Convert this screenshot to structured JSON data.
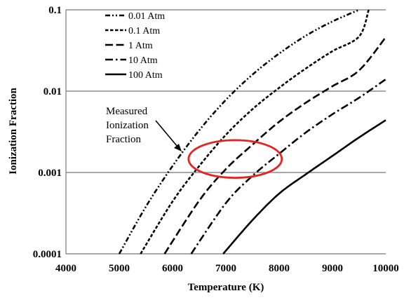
{
  "chart_data": {
    "type": "line",
    "xlabel": "Temperature (K)",
    "ylabel": "Ionization Fraction",
    "xlim": [
      4000,
      10000
    ],
    "ylim": [
      0.0001,
      0.1
    ],
    "yscale": "log",
    "xticks": [
      "4000",
      "5000",
      "6000",
      "7000",
      "8000",
      "9000",
      "10000"
    ],
    "yticks": [
      "0.0001",
      "0.001",
      "0.01",
      "0.1"
    ],
    "grid": "horizontal",
    "legend_position": "top-left",
    "series": [
      {
        "name": "0.01 Atm",
        "dash": "dash-dot-dot",
        "x": [
          5000,
          5500,
          6000,
          6500,
          7000,
          7500,
          8000,
          8500,
          9000,
          9500
        ],
        "y": [
          0.0001,
          0.00038,
          0.0012,
          0.0033,
          0.0078,
          0.016,
          0.029,
          0.048,
          0.072,
          0.1
        ]
      },
      {
        "name": "0.1 Atm",
        "dash": "short-dash",
        "x": [
          5400,
          6000,
          6500,
          7000,
          7500,
          8000,
          8500,
          9000,
          9500,
          9680
        ],
        "y": [
          0.0001,
          0.00044,
          0.0012,
          0.0029,
          0.006,
          0.011,
          0.019,
          0.031,
          0.047,
          0.1
        ]
      },
      {
        "name": "1 Atm",
        "dash": "long-dash",
        "x": [
          5850,
          6500,
          7000,
          7500,
          8000,
          8500,
          9000,
          9500,
          10000
        ],
        "y": [
          0.0001,
          0.00045,
          0.0011,
          0.0022,
          0.0042,
          0.0072,
          0.0115,
          0.018,
          0.046
        ]
      },
      {
        "name": "10 Atm",
        "dash": "dash-dot",
        "x": [
          6350,
          7000,
          7500,
          8000,
          8500,
          9000,
          9500,
          10000
        ],
        "y": [
          0.0001,
          0.00042,
          0.00091,
          0.0017,
          0.0031,
          0.0052,
          0.0083,
          0.014
        ]
      },
      {
        "name": "100 Atm",
        "dash": "solid",
        "x": [
          6950,
          7500,
          8000,
          8500,
          9000,
          9500,
          10000
        ],
        "y": [
          0.0001,
          0.00026,
          0.00055,
          0.00095,
          0.0016,
          0.0027,
          0.0044
        ]
      }
    ],
    "annotations": [
      {
        "text_lines": [
          "Measured",
          "Ionization",
          "Fraction"
        ]
      }
    ],
    "highlight_ellipse": {
      "color": "#e52421",
      "x_range": [
        6300,
        8050
      ],
      "y_range": [
        0.00086,
        0.0025
      ]
    }
  }
}
